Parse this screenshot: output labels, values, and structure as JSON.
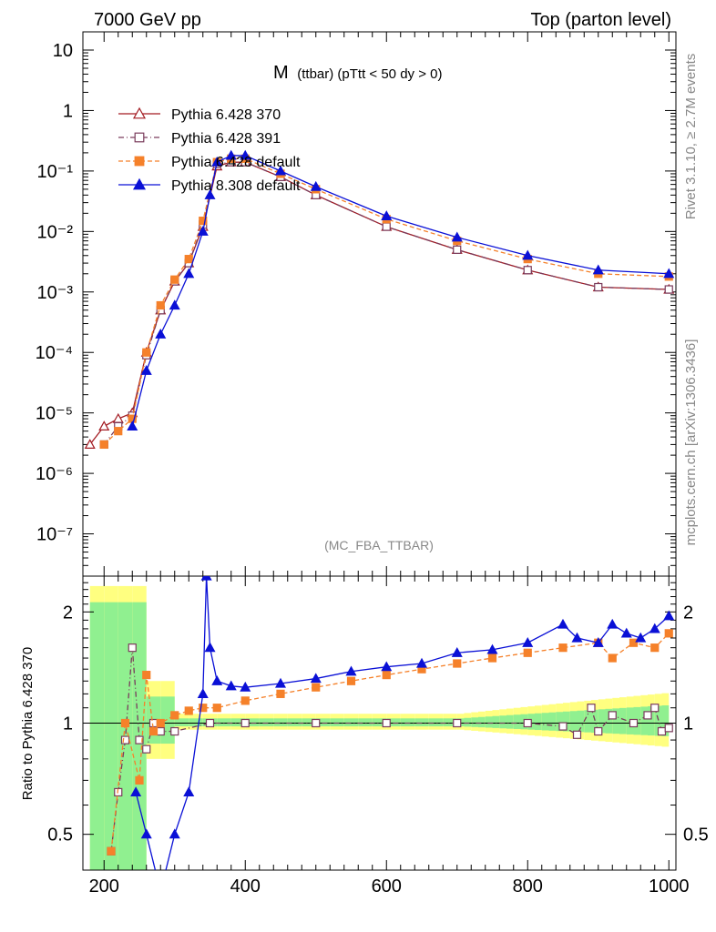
{
  "header": {
    "left": "7000 GeV pp",
    "right": "Top (parton level)"
  },
  "plot_title": {
    "main": "M",
    "detail": "(ttbar) (pTtt < 50 dy > 0)"
  },
  "watermark": "(MC_FBA_TTBAR)",
  "side_labels": {
    "rivet": "Rivet 3.1.10, ≥ 2.7M events",
    "mcplots": "mcplots.cern.ch [arXiv:1306.3436]"
  },
  "colors": {
    "py6_370": "#a31b22",
    "py6_391": "#7a3c5c",
    "py6_def": "#f5812a",
    "py8_def": "#0a10d6",
    "band_yellow": "#ffff80",
    "band_green": "#90f090"
  },
  "chart_data": [
    {
      "type": "line",
      "panel": "main",
      "log_y": true,
      "xlim": [
        170,
        1010
      ],
      "ylim": [
        2e-08,
        20
      ],
      "y_tick_labels": [
        "10⁻⁷",
        "10⁻⁶",
        "10⁻⁵",
        "10⁻⁴",
        "10⁻³",
        "10⁻²",
        "10⁻¹",
        "1",
        "10"
      ],
      "legend_placement": "top-left",
      "series": [
        {
          "name": "Pythia 6.428 370",
          "marker": "open-triangle",
          "x": [
            180,
            200,
            220,
            240,
            260,
            280,
            300,
            320,
            340,
            360,
            380,
            400,
            450,
            500,
            600,
            700,
            800,
            900,
            1000
          ],
          "y": [
            3e-06,
            6e-06,
            8e-06,
            1e-05,
            0.0001,
            0.0005,
            0.0015,
            0.003,
            0.012,
            0.12,
            0.14,
            0.14,
            0.08,
            0.04,
            0.012,
            0.005,
            0.0023,
            0.0012,
            0.0011
          ]
        },
        {
          "name": "Pythia 6.428 391",
          "marker": "open-square",
          "x": [
            200,
            220,
            240,
            260,
            280,
            300,
            320,
            340,
            360,
            380,
            400,
            450,
            500,
            600,
            700,
            800,
            900,
            1000
          ],
          "y": [
            3e-06,
            6e-06,
            9e-06,
            9e-05,
            0.0005,
            0.0015,
            0.003,
            0.013,
            0.13,
            0.14,
            0.14,
            0.08,
            0.04,
            0.012,
            0.005,
            0.0023,
            0.0012,
            0.0011
          ]
        },
        {
          "name": "Pythia 6.428 default",
          "marker": "filled-square",
          "x": [
            200,
            220,
            240,
            260,
            280,
            300,
            320,
            340,
            360,
            380,
            400,
            450,
            500,
            600,
            700,
            800,
            900,
            1000
          ],
          "y": [
            3e-06,
            5e-06,
            8e-06,
            0.0001,
            0.0006,
            0.0016,
            0.0035,
            0.015,
            0.14,
            0.16,
            0.16,
            0.09,
            0.05,
            0.016,
            0.007,
            0.0035,
            0.002,
            0.0018
          ]
        },
        {
          "name": "Pythia 8.308 default",
          "marker": "filled-triangle",
          "x": [
            240,
            260,
            280,
            300,
            320,
            340,
            350,
            360,
            380,
            400,
            450,
            500,
            600,
            700,
            800,
            900,
            1000
          ],
          "y": [
            6e-06,
            5e-05,
            0.0002,
            0.0006,
            0.002,
            0.01,
            0.04,
            0.14,
            0.18,
            0.18,
            0.1,
            0.055,
            0.018,
            0.008,
            0.004,
            0.0023,
            0.002
          ]
        }
      ]
    },
    {
      "type": "line",
      "panel": "ratio",
      "ylabel": "Ratio to Pythia 6.428 370",
      "log_y": true,
      "xlim": [
        170,
        1010
      ],
      "ylim": [
        0.4,
        2.5
      ],
      "x_tick_labels": [
        "200",
        "400",
        "600",
        "800",
        "1000"
      ],
      "y_tick_labels": [
        "0.5",
        "1",
        "2"
      ],
      "reference_line": 1,
      "series": [
        {
          "name": "Pythia 6.428 391",
          "marker": "open-square",
          "x": [
            210,
            220,
            230,
            240,
            250,
            260,
            270,
            280,
            300,
            350,
            400,
            500,
            600,
            700,
            800,
            850,
            870,
            890,
            900,
            920,
            950,
            970,
            980,
            990,
            1000
          ],
          "y": [
            0.45,
            0.65,
            0.9,
            1.6,
            0.9,
            0.85,
            1.0,
            0.95,
            0.95,
            1.0,
            1.0,
            1.0,
            1.0,
            1.0,
            1.0,
            0.98,
            0.93,
            1.1,
            0.95,
            1.05,
            1.0,
            1.05,
            1.1,
            0.95,
            0.97
          ]
        },
        {
          "name": "Pythia 6.428 default",
          "marker": "filled-square",
          "x": [
            210,
            230,
            250,
            260,
            270,
            280,
            300,
            320,
            340,
            360,
            400,
            450,
            500,
            550,
            600,
            650,
            700,
            750,
            800,
            850,
            900,
            920,
            950,
            980,
            1000
          ],
          "y": [
            0.45,
            1.0,
            0.7,
            1.35,
            0.95,
            1.0,
            1.05,
            1.08,
            1.1,
            1.1,
            1.15,
            1.2,
            1.25,
            1.3,
            1.35,
            1.4,
            1.45,
            1.5,
            1.55,
            1.6,
            1.65,
            1.5,
            1.65,
            1.6,
            1.75
          ]
        },
        {
          "name": "Pythia 8.308 default",
          "marker": "filled-triangle",
          "x": [
            245,
            260,
            280,
            300,
            320,
            340,
            345,
            350,
            360,
            380,
            400,
            450,
            500,
            550,
            600,
            650,
            700,
            750,
            800,
            850,
            870,
            900,
            920,
            940,
            960,
            980,
            1000
          ],
          "y": [
            0.65,
            0.5,
            0.35,
            0.5,
            0.65,
            1.2,
            2.5,
            1.6,
            1.3,
            1.26,
            1.25,
            1.28,
            1.32,
            1.38,
            1.42,
            1.45,
            1.55,
            1.58,
            1.65,
            1.85,
            1.7,
            1.65,
            1.85,
            1.75,
            1.7,
            1.8,
            1.95
          ]
        }
      ]
    }
  ]
}
